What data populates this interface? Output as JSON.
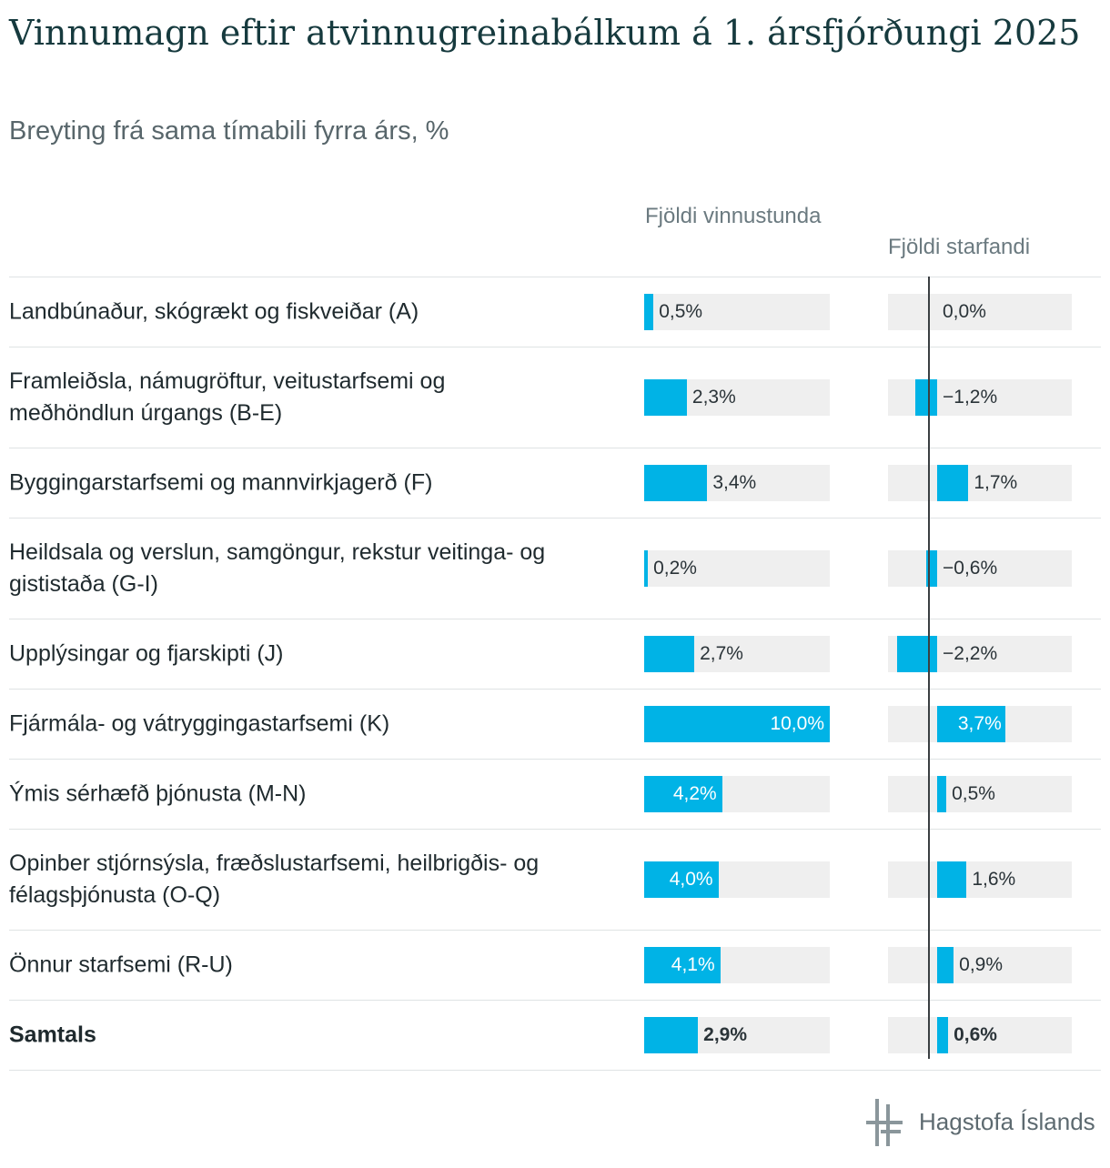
{
  "title": "Vinnumagn eftir atvinnugreinabálkum á 1. ársfjórðungi 2025",
  "subtitle": "Breyting frá sama tímabili fyrra árs, %",
  "columns": [
    "Fjöldi vinnustunda",
    "Fjöldi starfandi"
  ],
  "logo_text": "Hagstofa Íslands",
  "colors": {
    "bar": "#00b3e6",
    "track": "#efefef",
    "title": "#163a3e"
  },
  "chart_data": {
    "type": "bar",
    "orientation": "horizontal",
    "categories": [
      "Landbúnaður, skógrækt og fiskveiðar (A)",
      "Framleiðsla, námugröftur, veitustarfsemi og meðhöndlun úrgangs (B-E)",
      "Byggingarstarfsemi og mannvirkjagerð (F)",
      "Heildsala og verslun, samgöngur, rekstur veitinga- og gististaða (G-I)",
      "Upplýsingar og fjarskipti (J)",
      "Fjármála- og vátryggingastarfsemi (K)",
      "Ýmis sérhæfð þjónusta (M-N)",
      "Opinber stjórnsýsla, fræðslustarfsemi, heilbrigðis- og félagsþjónusta (O-Q)",
      "Önnur starfsemi (R-U)",
      "Samtals"
    ],
    "series": [
      {
        "name": "Fjöldi vinnustunda",
        "values": [
          0.5,
          2.3,
          3.4,
          0.2,
          2.7,
          10.0,
          4.2,
          4.0,
          4.1,
          2.9
        ],
        "labels": [
          "0,5%",
          "2,3%",
          "3,4%",
          "0,2%",
          "2,7%",
          "10,0%",
          "4,2%",
          "4,0%",
          "4,1%",
          "2,9%"
        ],
        "xlim": [
          0,
          10
        ]
      },
      {
        "name": "Fjöldi starfandi",
        "values": [
          0.0,
          -1.2,
          1.7,
          -0.6,
          -2.2,
          3.7,
          0.5,
          1.6,
          0.9,
          0.6
        ],
        "labels": [
          "0,0%",
          "−1,2%",
          "1,7%",
          "−0,6%",
          "−2,2%",
          "3,7%",
          "0,5%",
          "1,6%",
          "0,9%",
          "0,6%"
        ],
        "xlim": [
          -2.2,
          7.8
        ]
      }
    ]
  }
}
